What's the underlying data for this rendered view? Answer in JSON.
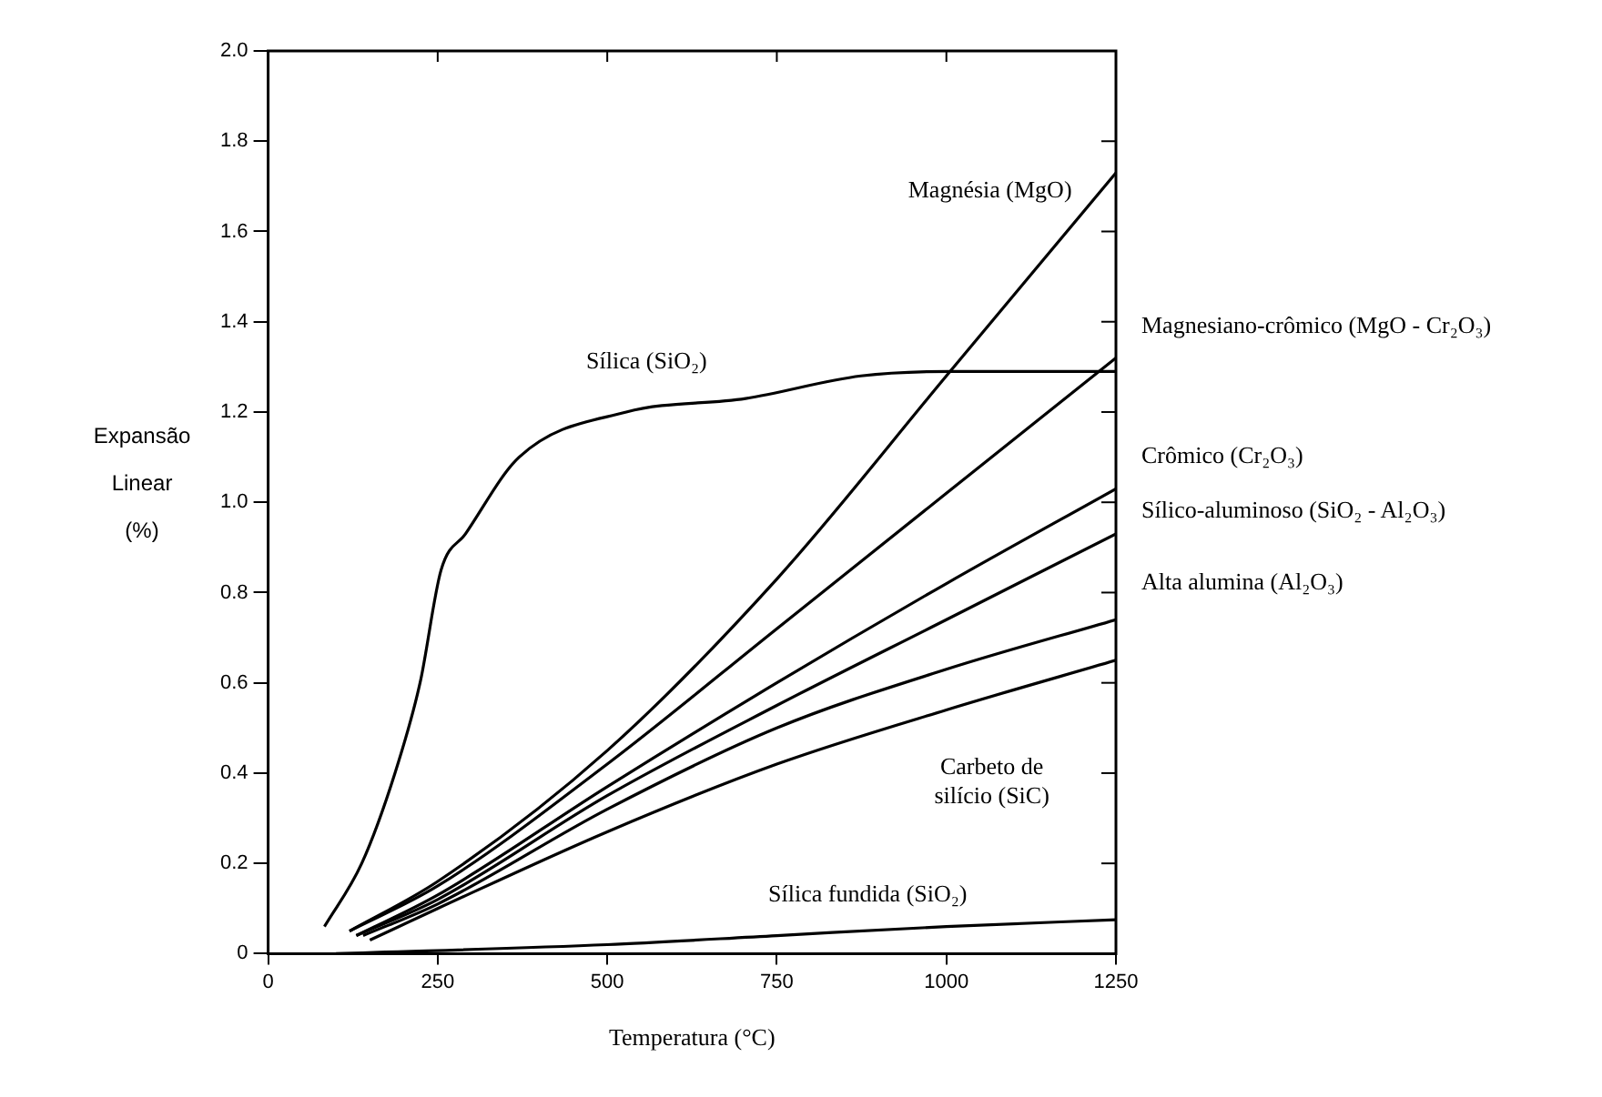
{
  "chart_data": {
    "type": "line",
    "xlabel": "Temperatura (°C)",
    "ylabel": "Expansão Linear (%)",
    "xlim": [
      0,
      1250
    ],
    "xticks": [
      0,
      250,
      500,
      750,
      1000,
      1250
    ],
    "ylim": [
      0,
      2
    ],
    "yticks": [
      0,
      0.2,
      0.4,
      0.6,
      0.8,
      {
        "value": 1,
        "label": "1.0"
      },
      1.2,
      1.4,
      1.6,
      1.8,
      {
        "value": 2,
        "label": "2.0"
      }
    ],
    "grid": false,
    "legend": "right",
    "marker": "none",
    "line_style": "solid",
    "series": [
      {
        "name": "Magnésia (MgO)",
        "color": "#000000",
        "x": [
          120,
          250,
          500,
          750,
          1000,
          1250
        ],
        "values": [
          0.05,
          0.16,
          0.45,
          0.83,
          1.28,
          1.73
        ]
      },
      {
        "name": "Sílica (SiO₂)",
        "color": "#000000",
        "x": [
          83,
          138,
          187,
          224,
          255,
          291,
          370,
          528,
          704,
          874,
          1007,
          1250
        ],
        "values": [
          0.06,
          0.2,
          0.4,
          0.6,
          0.85,
          0.93,
          1.1,
          1.2,
          1.23,
          1.28,
          1.29,
          1.29
        ]
      },
      {
        "name": "Magnesiano-crômico (MgO - Cr₂O₃)",
        "color": "#000000",
        "x": [
          120,
          250,
          500,
          750,
          1000,
          1250
        ],
        "values": [
          0.05,
          0.15,
          0.42,
          0.72,
          1.02,
          1.32
        ]
      },
      {
        "name": "Crômico (Cr₂O₃)",
        "color": "#000000",
        "x": [
          130,
          250,
          500,
          750,
          1000,
          1250
        ],
        "values": [
          0.04,
          0.13,
          0.37,
          0.6,
          0.82,
          1.03
        ]
      },
      {
        "name": "Sílico-aluminoso (SiO₂ - Al₂O₃)",
        "color": "#000000",
        "x": [
          130,
          250,
          500,
          750,
          1000,
          1250
        ],
        "values": [
          0.04,
          0.12,
          0.35,
          0.55,
          0.74,
          0.93
        ]
      },
      {
        "name": "Alta alumina (Al₂O₃)",
        "color": "#000000",
        "x": [
          140,
          250,
          500,
          750,
          1000,
          1250
        ],
        "values": [
          0.04,
          0.11,
          0.32,
          0.5,
          0.63,
          0.74
        ]
      },
      {
        "name": "Carbeto de silício (SiC)",
        "color": "#000000",
        "x": [
          150,
          250,
          500,
          750,
          1000,
          1250
        ],
        "values": [
          0.03,
          0.1,
          0.27,
          0.42,
          0.54,
          0.65
        ]
      },
      {
        "name": "Sílica fundida (SiO₂)",
        "color": "#000000",
        "x": [
          100,
          500,
          750,
          1000,
          1250
        ],
        "values": [
          0,
          0.02,
          0.04,
          0.06,
          0.075
        ]
      }
    ]
  }
}
